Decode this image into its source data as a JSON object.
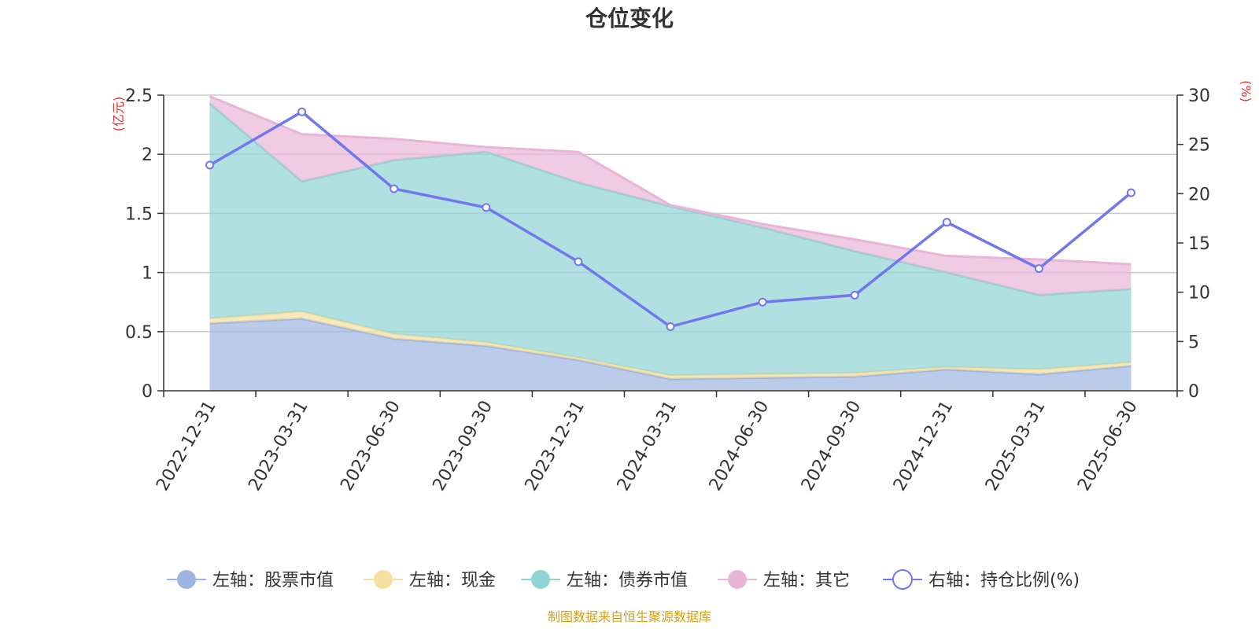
{
  "chart_data": {
    "type": "area",
    "title": "仓位变化",
    "left_axis_label": "(亿元)",
    "right_axis_label": "(%)",
    "categories": [
      "2022-12-31",
      "2023-03-31",
      "2023-06-30",
      "2023-09-30",
      "2023-12-31",
      "2024-03-31",
      "2024-06-30",
      "2024-09-30",
      "2024-12-31",
      "2025-03-31",
      "2025-06-30"
    ],
    "left_ylim": [
      0,
      2.5
    ],
    "left_yticks": [
      "0",
      "0.5",
      "1",
      "1.5",
      "2",
      "2.5"
    ],
    "right_ylim": [
      0,
      30
    ],
    "right_yticks": [
      "0",
      "5",
      "10",
      "15",
      "20",
      "25",
      "30"
    ],
    "grid": true,
    "legend_position": "bottom",
    "series": [
      {
        "name": "左轴：股票市值",
        "axis": "left",
        "kind": "stacked-area",
        "color": "#9db5e0",
        "values": [
          0.57,
          0.61,
          0.44,
          0.38,
          0.26,
          0.1,
          0.11,
          0.12,
          0.18,
          0.14,
          0.21
        ]
      },
      {
        "name": "左轴：现金",
        "axis": "left",
        "kind": "stacked-area",
        "color": "#f5e0a0",
        "values": [
          0.04,
          0.06,
          0.04,
          0.03,
          0.02,
          0.03,
          0.03,
          0.03,
          0.02,
          0.04,
          0.03
        ]
      },
      {
        "name": "左轴：债券市值",
        "axis": "left",
        "kind": "stacked-area",
        "color": "#8fd3d3",
        "values": [
          1.82,
          1.1,
          1.47,
          1.61,
          1.48,
          1.43,
          1.24,
          1.03,
          0.8,
          0.63,
          0.62
        ]
      },
      {
        "name": "左轴：其它",
        "axis": "left",
        "kind": "stacked-area",
        "color": "#e8b5d8",
        "values": [
          0.06,
          0.4,
          0.18,
          0.04,
          0.26,
          0.01,
          0.03,
          0.1,
          0.14,
          0.3,
          0.21
        ]
      },
      {
        "name": "右轴：持仓比例(%)",
        "axis": "right",
        "kind": "line",
        "color": "#7277f0",
        "values": [
          22.9,
          28.3,
          20.5,
          18.6,
          13.1,
          6.5,
          9.0,
          9.7,
          17.1,
          12.4,
          20.1
        ]
      }
    ]
  },
  "footer": {
    "source": "制图数据来自恒生聚源数据库"
  }
}
